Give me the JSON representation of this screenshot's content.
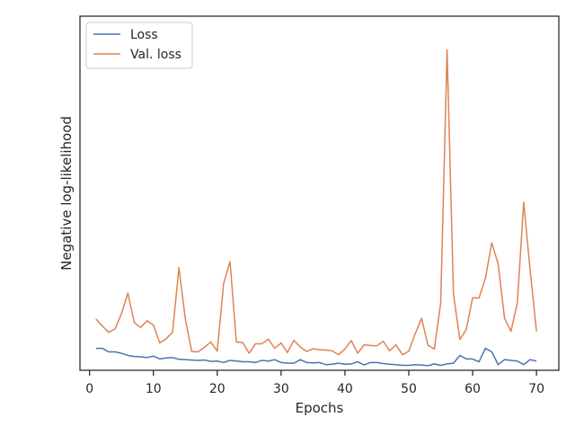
{
  "chart_data": {
    "type": "line",
    "xlabel": "Epochs",
    "ylabel": "Negative log-likelihood",
    "xlim": [
      -1.5,
      73.5
    ],
    "ylim": [
      0,
      10
    ],
    "x_ticks": [
      0,
      10,
      20,
      30,
      40,
      50,
      60,
      70
    ],
    "y_ticks_visible": false,
    "grid": false,
    "legend_position": "top-left",
    "x": [
      1,
      2,
      3,
      4,
      5,
      6,
      7,
      8,
      9,
      10,
      11,
      12,
      13,
      14,
      15,
      16,
      17,
      18,
      19,
      20,
      21,
      22,
      23,
      24,
      25,
      26,
      27,
      28,
      29,
      30,
      31,
      32,
      33,
      34,
      35,
      36,
      37,
      38,
      39,
      40,
      41,
      42,
      43,
      44,
      45,
      46,
      47,
      48,
      49,
      50,
      51,
      52,
      53,
      54,
      55,
      56,
      57,
      58,
      59,
      60,
      61,
      62,
      63,
      64,
      65,
      66,
      67,
      68,
      69,
      70
    ],
    "series": [
      {
        "name": "Loss",
        "color": "#4c72b0",
        "values": [
          0.62,
          0.62,
          0.52,
          0.52,
          0.48,
          0.42,
          0.39,
          0.38,
          0.36,
          0.4,
          0.32,
          0.35,
          0.36,
          0.31,
          0.3,
          0.29,
          0.28,
          0.29,
          0.25,
          0.26,
          0.22,
          0.28,
          0.26,
          0.24,
          0.24,
          0.22,
          0.28,
          0.26,
          0.3,
          0.22,
          0.2,
          0.2,
          0.3,
          0.22,
          0.21,
          0.22,
          0.16,
          0.17,
          0.2,
          0.17,
          0.18,
          0.24,
          0.15,
          0.22,
          0.22,
          0.19,
          0.17,
          0.16,
          0.14,
          0.14,
          0.16,
          0.15,
          0.13,
          0.18,
          0.14,
          0.18,
          0.2,
          0.42,
          0.32,
          0.32,
          0.24,
          0.62,
          0.52,
          0.16,
          0.3,
          0.28,
          0.26,
          0.16,
          0.3,
          0.26
        ]
      },
      {
        "name": "Val. loss",
        "color": "#dd8452",
        "values": [
          1.45,
          1.25,
          1.07,
          1.17,
          1.6,
          2.18,
          1.35,
          1.21,
          1.4,
          1.28,
          0.77,
          0.89,
          1.07,
          2.9,
          1.45,
          0.53,
          0.52,
          0.65,
          0.8,
          0.54,
          2.45,
          3.07,
          0.8,
          0.78,
          0.48,
          0.75,
          0.75,
          0.88,
          0.62,
          0.77,
          0.5,
          0.85,
          0.66,
          0.53,
          0.61,
          0.58,
          0.57,
          0.55,
          0.44,
          0.6,
          0.84,
          0.48,
          0.72,
          0.7,
          0.69,
          0.82,
          0.55,
          0.72,
          0.44,
          0.54,
          1.03,
          1.47,
          0.71,
          0.6,
          1.9,
          9.05,
          2.15,
          0.87,
          1.15,
          2.05,
          2.04,
          2.6,
          3.6,
          3.0,
          1.47,
          1.1,
          1.9,
          4.75,
          2.84,
          1.1
        ]
      }
    ]
  }
}
